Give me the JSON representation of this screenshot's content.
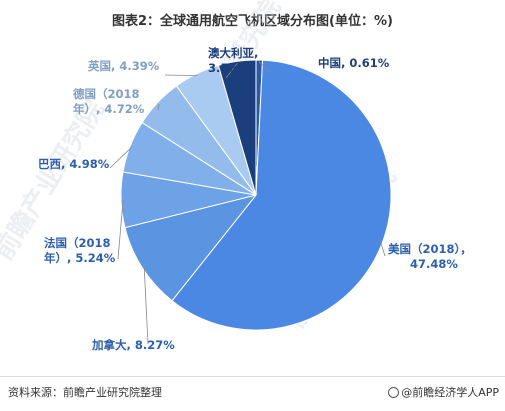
{
  "title": "图表2：全球通用航空飞机区域分布图(单位：%)",
  "footer": {
    "source": "资料来源：前瞻产业研究院整理",
    "brand": "@前瞻经济学人APP"
  },
  "watermarks": [
    "前瞻产业研究院",
    "前瞻产业研究院",
    "前瞻产业研究院"
  ],
  "chart_data": {
    "type": "pie",
    "title": "图表2：全球通用航空飞机区域分布图(单位：%)",
    "slices": [
      {
        "name": "中国",
        "label": [
          "中国, 0.61%"
        ],
        "value": 0.61,
        "color": "#2a5aa6",
        "label_color": "#1f3f7a"
      },
      {
        "name": "美国（2018）",
        "label": [
          "美国（2018），",
          "47.48%"
        ],
        "value": 47.48,
        "color": "#4a88e3",
        "label_color": "#2c5fad"
      },
      {
        "name": "加拿大",
        "label": [
          "加拿大, 8.27%"
        ],
        "value": 8.27,
        "color": "#5b95e2",
        "label_color": "#2c5fad"
      },
      {
        "name": "法国（2018）",
        "label": [
          "法国（2018",
          "年）, 5.24%"
        ],
        "value": 5.24,
        "color": "#6da2e6",
        "label_color": "#2c5fad"
      },
      {
        "name": "巴西",
        "label": [
          "巴西, 4.98%"
        ],
        "value": 4.98,
        "color": "#80afe9",
        "label_color": "#2c5fad"
      },
      {
        "name": "德国（2018）",
        "label": [
          "德国（2018",
          "年）, 4.72%"
        ],
        "value": 4.72,
        "color": "#93bcec",
        "label_color": "#7f9fc4"
      },
      {
        "name": "英国",
        "label": [
          "英国, 4.39%"
        ],
        "value": 4.39,
        "color": "#a9cbf1",
        "label_color": "#7f9fc4"
      },
      {
        "name": "澳大利亚",
        "label": [
          "澳大利亚,",
          "3.56%"
        ],
        "value": 3.56,
        "color": "#1b3f7c",
        "label_color": "#1b3f7c"
      }
    ]
  }
}
